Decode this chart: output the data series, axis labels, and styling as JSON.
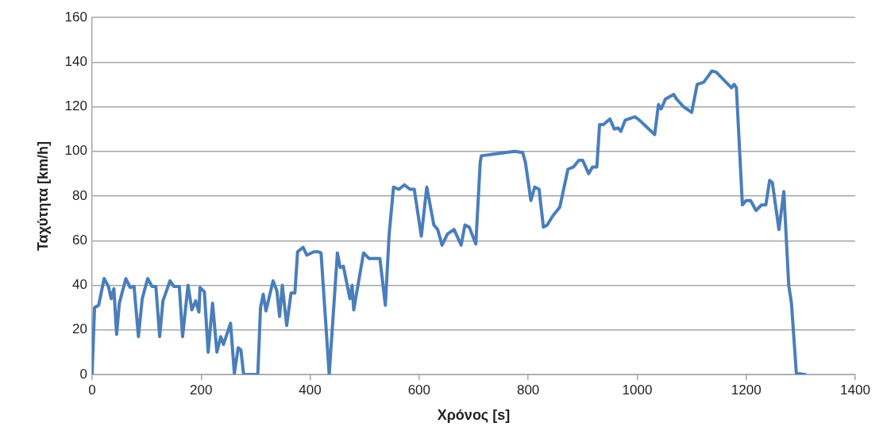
{
  "chart_data": {
    "type": "line",
    "xlabel": "Χρόνος [s]",
    "ylabel": "Ταχύτητα [km/h]",
    "xlim": [
      0,
      1400
    ],
    "xticks": [
      0,
      200,
      400,
      600,
      800,
      1000,
      1200,
      1400
    ],
    "ylim": [
      0,
      160
    ],
    "yticks": [
      0,
      20,
      40,
      60,
      80,
      100,
      120,
      140,
      160
    ],
    "grid": "y",
    "legend": false,
    "marker": "none",
    "line_style": "solid",
    "series": [
      {
        "color": "#4a7ebb",
        "x": [
          0,
          4.5,
          12,
          22,
          30,
          35,
          40,
          45,
          50,
          62,
          70,
          77,
          85,
          92,
          102,
          110,
          117,
          124,
          130,
          143,
          150,
          160,
          166,
          176,
          183,
          190,
          196,
          198,
          206,
          213,
          221,
          229,
          236,
          241,
          254,
          261,
          268,
          273,
          278,
          304,
          309,
          314,
          319,
          332,
          339,
          344,
          349,
          357,
          365,
          372,
          377,
          387,
          394,
          407,
          415,
          420,
          435,
          450,
          455,
          461,
          473,
          477,
          480,
          498,
          508,
          528,
          538,
          545,
          553,
          563,
          573,
          583,
          591,
          604,
          614,
          627,
          634,
          642,
          652,
          664,
          677,
          684,
          692,
          704,
          712,
          714,
          744,
          775,
          790,
          795,
          805,
          812,
          820,
          828,
          835,
          845,
          858,
          873,
          883,
          893,
          900,
          911,
          918,
          926,
          931,
          938,
          950,
          958,
          965,
          970,
          978,
          996,
          1004,
          1017,
          1032,
          1039,
          1044,
          1052,
          1067,
          1072,
          1085,
          1100,
          1110,
          1122,
          1137,
          1145,
          1163,
          1173,
          1178,
          1182,
          1193,
          1200,
          1208,
          1218,
          1228,
          1236,
          1243,
          1248,
          1260,
          1269,
          1278,
          1283,
          1292,
          1308
        ],
        "values": [
          0,
          30,
          31,
          43,
          39.5,
          34,
          38.5,
          18,
          32,
          43,
          39,
          39.5,
          17,
          34,
          43,
          39.5,
          39.5,
          17,
          33,
          42,
          39.5,
          39.5,
          17,
          40,
          29,
          33,
          28,
          39,
          37,
          10,
          32,
          10,
          17,
          13.5,
          23,
          0.5,
          12,
          11,
          0,
          0,
          30,
          36,
          28.5,
          42,
          37.5,
          26,
          40,
          22,
          36.5,
          36.5,
          55,
          57,
          53.5,
          55,
          55,
          54.5,
          0,
          54.5,
          48,
          48.5,
          34,
          40,
          29,
          54.5,
          52,
          52,
          31,
          63,
          84,
          83,
          85,
          83,
          83,
          62,
          84,
          67,
          65,
          58,
          63,
          65,
          58,
          67,
          66,
          58.5,
          95,
          98,
          99,
          100,
          99.5,
          95,
          78,
          84,
          83,
          66,
          67,
          71,
          75,
          92,
          93,
          96,
          96,
          90,
          93,
          93,
          112,
          112,
          114.5,
          110,
          110.5,
          109,
          114,
          115.5,
          114,
          111,
          107.5,
          121,
          119,
          123.5,
          125.5,
          123.5,
          120,
          117.5,
          130,
          131,
          136,
          135.5,
          131,
          128.5,
          130,
          128.5,
          76,
          78,
          78,
          73.5,
          76,
          76,
          87,
          86,
          65,
          82,
          40,
          32,
          0.5,
          0
        ]
      }
    ]
  }
}
